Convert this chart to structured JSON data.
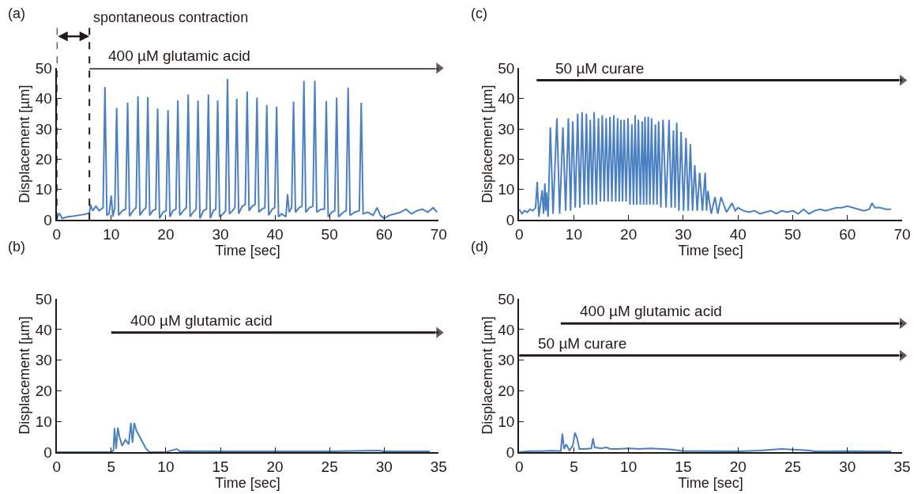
{
  "chart_data": [
    {
      "type": "line",
      "title": "(a)",
      "xlabel": "Time [sec]",
      "ylabel": "Displacement [µm]",
      "xlim": [
        0,
        70
      ],
      "ylim": [
        0,
        50
      ],
      "xticks": [
        0,
        10,
        20,
        30,
        40,
        50,
        60,
        70
      ],
      "yticks": [
        0,
        10,
        20,
        30,
        40,
        50
      ],
      "marker": "none",
      "line_style": "solid",
      "ref_lines": [
        {
          "axis": "x",
          "value": 0,
          "line_style": "dashed",
          "color": "#231815"
        },
        {
          "axis": "x",
          "value": 6,
          "label": "spontaneous contraction",
          "line_style": "dashed",
          "color": "#231815"
        }
      ],
      "series": [
        {
          "color": "#4a7fc1",
          "x": [
            0,
            0.5,
            1,
            2,
            3,
            4,
            5,
            6,
            6.2,
            6.6,
            7.2,
            7.8,
            8.5,
            8.85,
            9.2,
            9.6,
            10,
            10.3,
            10.65,
            11.0,
            11.35,
            12,
            12.65,
            13.0,
            13.35,
            14,
            14.55,
            14.9,
            15.25,
            15.8,
            16.35,
            16.7,
            17.05,
            17.6,
            18.15,
            18.5,
            18.85,
            19.5,
            20.05,
            20.4,
            20.75,
            21.3,
            21.85,
            22.2,
            22.55,
            23.2,
            23.75,
            24.1,
            24.45,
            25,
            25.55,
            25.9,
            26.25,
            26.9,
            27.45,
            27.8,
            28.15,
            28.7,
            29.15,
            29.5,
            29.85,
            30.5,
            30.95,
            31.3,
            31.65,
            32.2,
            32.65,
            33.0,
            33.35,
            34,
            34.55,
            34.9,
            35.25,
            35.8,
            36.35,
            36.7,
            37.05,
            37.6,
            38.15,
            38.5,
            38.85,
            39.5,
            39.95,
            40.3,
            40.65,
            41.2,
            42,
            42.3,
            42.6,
            43.05,
            43.4,
            43.75,
            44.4,
            44.95,
            45.3,
            45.65,
            46.3,
            46.95,
            47.3,
            47.65,
            48.4,
            49.05,
            49.4,
            49.75,
            50.4,
            50.95,
            51.3,
            51.65,
            52.5,
            53.05,
            53.4,
            53.75,
            54.6,
            55.45,
            55.8,
            56.15,
            57,
            58,
            58.7,
            59.3,
            60,
            61,
            62,
            63,
            64,
            65,
            66,
            67,
            68,
            69,
            69.7
          ],
          "values": [
            0.3,
            2.2,
            0.5,
            1,
            1.2,
            1.5,
            1.8,
            2.2,
            5,
            3,
            4.5,
            3,
            4,
            43.8,
            1.5,
            2,
            8,
            1,
            4,
            36.9,
            1.5,
            3,
            3.5,
            38.6,
            1.2,
            3,
            4,
            40.7,
            1.5,
            3,
            4,
            40.5,
            1.5,
            3,
            3.5,
            36.7,
            0.5,
            2.5,
            3,
            36.2,
            1,
            3,
            3.5,
            39.4,
            1.5,
            3,
            4,
            41.3,
            1,
            2.5,
            3.5,
            39.3,
            0.5,
            3,
            3.5,
            41.3,
            0.5,
            3,
            3.5,
            39.4,
            1,
            2,
            3,
            46.5,
            2,
            3,
            4,
            39.9,
            2,
            4.5,
            5,
            42.3,
            3,
            4.5,
            5,
            40.3,
            2.5,
            3.5,
            4,
            37.9,
            1.5,
            3.5,
            4,
            37.3,
            1,
            2,
            1,
            8.5,
            2.5,
            4,
            39.0,
            2.5,
            4,
            4.5,
            45.8,
            2.5,
            4,
            4.5,
            45.8,
            2.5,
            3.5,
            3.5,
            39.2,
            1,
            2.5,
            3,
            40.3,
            1,
            2.5,
            3,
            43.6,
            1.5,
            2.5,
            3,
            38.6,
            2,
            2.5,
            1.5,
            4,
            1.5,
            0.5,
            1.5,
            2,
            2.5,
            3.5,
            2,
            3,
            3.5,
            2.5,
            4,
            2.5
          ]
        },
        {
          "name": "400 µM glutamic acid",
          "color": "#231815",
          "marker": "triangle",
          "x": [
            6,
            70
          ],
          "values": [
            50,
            50
          ]
        }
      ]
    },
    {
      "type": "line",
      "title": "(c)",
      "xlabel": "Time [sec]",
      "ylabel": "Displacement [µm]",
      "xlim": [
        0,
        70
      ],
      "ylim": [
        0,
        50
      ],
      "xticks": [
        0,
        10,
        20,
        30,
        40,
        50,
        60,
        70
      ],
      "yticks": [
        0,
        10,
        20,
        30,
        40,
        50
      ],
      "marker": "none",
      "line_style": "solid",
      "series": [
        {
          "color": "#4a7fc1",
          "x": [
            0,
            0.5,
            1,
            1.5,
            2,
            2.5,
            3,
            3.3,
            3.6,
            4.2,
            4.45,
            4.7,
            4.85,
            5.0,
            5.3,
            5.7,
            6.2,
            6.9,
            7.4,
            8.0,
            8.5,
            9.0,
            9.4,
            9.8,
            10.25,
            10.7,
            11.1,
            11.5,
            11.9,
            12.3,
            12.65,
            13.0,
            13.35,
            13.7,
            14.1,
            14.5,
            14.85,
            15.2,
            15.55,
            15.9,
            16.25,
            16.6,
            16.95,
            17.3,
            17.65,
            18.0,
            18.3,
            18.6,
            18.9,
            19.2,
            19.55,
            19.9,
            20.25,
            20.6,
            20.9,
            21.2,
            21.5,
            21.8,
            22.15,
            22.5,
            22.75,
            23.0,
            23.3,
            23.6,
            23.9,
            24.2,
            24.55,
            24.9,
            25.2,
            25.5,
            25.9,
            26.3,
            26.85,
            27.4,
            27.8,
            28.2,
            28.5,
            28.8,
            29.2,
            29.6,
            30.05,
            30.5,
            30.9,
            31.3,
            31.7,
            32.1,
            32.55,
            33.0,
            33.5,
            34.0,
            34.25,
            34.5,
            35.1,
            35.8,
            36.3,
            36.9,
            37.9,
            38.9,
            39.5,
            40,
            41,
            42,
            43,
            44,
            45,
            46,
            47,
            48,
            49,
            50,
            51,
            52,
            53,
            54,
            55,
            56,
            57,
            58,
            59,
            60,
            61,
            62,
            63,
            64,
            64.5,
            65,
            66,
            67,
            68
          ],
          "values": [
            3.5,
            2,
            3,
            2.5,
            3.5,
            3,
            4,
            12.5,
            1,
            9.8,
            2,
            12,
            3,
            9,
            1,
            30.5,
            2,
            33.5,
            2,
            30.5,
            3,
            33.5,
            3,
            32.5,
            4,
            35,
            4,
            35.5,
            5,
            35,
            5,
            33,
            5,
            35.5,
            5,
            33.5,
            6,
            34.5,
            6,
            33.5,
            6,
            34,
            6,
            34.5,
            6,
            33.5,
            6,
            33,
            6,
            33,
            6,
            33.5,
            5,
            31.5,
            5,
            34.5,
            5,
            33,
            5,
            32.5,
            5,
            34,
            5,
            34,
            5,
            33.5,
            5,
            31.5,
            5,
            32.5,
            4,
            33,
            4,
            33,
            4,
            29.5,
            4,
            32,
            3,
            29,
            3,
            27,
            3,
            25,
            3,
            18,
            3,
            15.5,
            3,
            15.5,
            3,
            9.5,
            2,
            7.5,
            2,
            7.5,
            2.5,
            5.5,
            3,
            4,
            3,
            2.5,
            3,
            2,
            2.5,
            3,
            2,
            3,
            2.5,
            3,
            2,
            3.5,
            2,
            3,
            3.5,
            3,
            3.5,
            4,
            4,
            4.5,
            4,
            3.5,
            3,
            3.5,
            5.5,
            4,
            4,
            3.5,
            3.5
          ]
        },
        {
          "name": "50 µM curare",
          "color": "#231815",
          "marker": "triangle",
          "x": [
            3.2,
            70
          ],
          "values": [
            46,
            46
          ]
        }
      ]
    },
    {
      "type": "line",
      "title": "(b)",
      "xlabel": "Time [sec]",
      "ylabel": "Displacement [µm]",
      "xlim": [
        0,
        35
      ],
      "ylim": [
        0,
        50
      ],
      "xticks": [
        0,
        5,
        10,
        15,
        20,
        25,
        30,
        35
      ],
      "yticks": [
        0,
        10,
        20,
        30,
        40,
        50
      ],
      "marker": "none",
      "line_style": "solid",
      "series": [
        {
          "color": "#4a7fc1",
          "x": [
            0,
            2,
            4,
            5,
            5.2,
            5.3,
            5.45,
            5.6,
            5.75,
            6.0,
            6.3,
            6.6,
            6.8,
            6.95,
            7.1,
            7.3,
            7.6,
            7.9,
            8.2,
            8.5,
            9,
            10,
            11,
            11.3,
            12,
            15,
            20,
            25,
            29.5,
            30,
            34.2
          ],
          "values": [
            0,
            0,
            0,
            0,
            0.5,
            7.8,
            1,
            8,
            5,
            2,
            4,
            2.5,
            9.5,
            3,
            9.5,
            7,
            5,
            3,
            1,
            0,
            0,
            0,
            1,
            0.2,
            0.3,
            0.2,
            0.2,
            0.2,
            0.5,
            0.2,
            0.2
          ]
        },
        {
          "name": "400 µM glutamic acid",
          "color": "#231815",
          "marker": "triangle",
          "x": [
            5,
            35
          ],
          "values": [
            39,
            39
          ]
        }
      ]
    },
    {
      "type": "line",
      "title": "(d)",
      "xlabel": "Time [sec]",
      "ylabel": "Displacement [µm]",
      "xlim": [
        0,
        35
      ],
      "ylim": [
        0,
        50
      ],
      "xticks": [
        0,
        5,
        10,
        15,
        20,
        25,
        30,
        35
      ],
      "yticks": [
        0,
        10,
        20,
        30,
        40,
        50
      ],
      "marker": "none",
      "line_style": "solid",
      "series": [
        {
          "color": "#4a7fc1",
          "x": [
            0,
            1,
            2,
            3,
            3.8,
            3.95,
            4.1,
            4.3,
            4.6,
            4.9,
            5.1,
            5.3,
            5.5,
            6,
            6.6,
            6.75,
            6.9,
            7.5,
            8,
            8.3,
            9,
            10,
            11,
            12,
            13,
            14,
            15,
            17,
            20,
            22,
            24,
            25,
            26.5,
            27,
            28,
            30,
            32,
            34
          ],
          "values": [
            0,
            0.3,
            0.3,
            0.4,
            0.3,
            6,
            1,
            2.5,
            0.5,
            2,
            6.3,
            4.5,
            1,
            1,
            1.2,
            4.5,
            1.5,
            1.2,
            1.5,
            1,
            1,
            1.2,
            1,
            1.2,
            1,
            0.8,
            0.3,
            0.3,
            0.2,
            0.5,
            1,
            0.8,
            0.5,
            0.2,
            0.2,
            0.3,
            0.2,
            0.2
          ]
        },
        {
          "name": "400 µM glutamic acid",
          "color": "#231815",
          "marker": "triangle",
          "x": [
            3.8,
            35
          ],
          "values": [
            42,
            42
          ]
        },
        {
          "name": "50 µM curare",
          "color": "#231815",
          "marker": "triangle",
          "x": [
            0,
            35
          ],
          "values": [
            31.5,
            31.5
          ]
        }
      ]
    }
  ]
}
